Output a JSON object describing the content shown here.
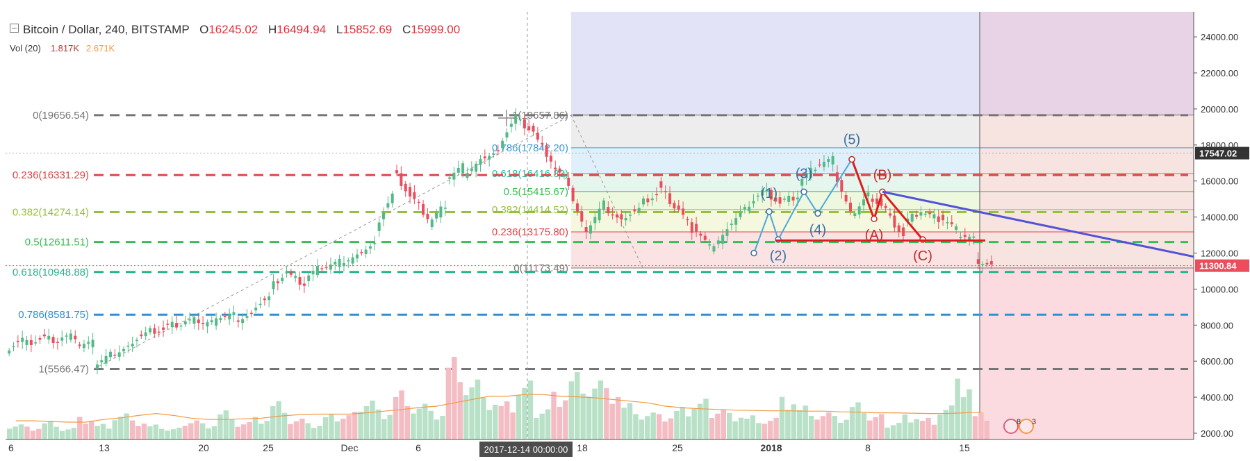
{
  "header": {
    "title": "Bitcoin / Dollar, 240, BITSTAMP",
    "o_label": "O",
    "o_value": "16245.02",
    "h_label": "H",
    "h_value": "16494.94",
    "l_label": "L",
    "l_value": "15852.69",
    "c_label": "C",
    "c_value": "15999.00",
    "vol_label": "Vol (20)",
    "vol_value": "1.817K",
    "vol_ma": "2.671K"
  },
  "colors": {
    "up": "#53b987",
    "down": "#eb4d5c",
    "bg_blue": "#e3e3f8",
    "bg_pink": "#fbdbe0",
    "bg_purple": "#e8d3e6"
  },
  "chart_data": {
    "type": "candlestick",
    "symbol": "Bitcoin / Dollar",
    "timeframe": "240",
    "exchange": "BITSTAMP",
    "ylim": [
      1000,
      24500
    ],
    "y_ticks": [
      "24000.00",
      "22000.00",
      "20000.00",
      "18000.00",
      "16000.00",
      "14000.00",
      "12000.00",
      "10000.00",
      "8000.00",
      "6000.00",
      "4000.00",
      "2000.00"
    ],
    "x_ticks": [
      "6",
      "13",
      "20",
      "25",
      "Dec",
      "6",
      "18",
      "25",
      "2018",
      "8",
      "15"
    ],
    "crosshair_label": "2017-12-14 00:00:00",
    "price_labels": [
      {
        "value": 17547.02,
        "text": "17547.02",
        "color": "#333333"
      },
      {
        "value": 11300.84,
        "text": "11300.84",
        "color": "#eb4d5c"
      }
    ],
    "price_path": [
      [
        6600,
        7300
      ],
      [
        6900,
        7250
      ],
      [
        7300,
        7150
      ],
      [
        7200,
        7400
      ],
      [
        6800,
        7000
      ],
      [
        5700,
        6400
      ],
      [
        6300,
        6800
      ],
      [
        7000,
        7600
      ],
      [
        7600,
        7800
      ],
      [
        7900,
        8100
      ],
      [
        8100,
        8300
      ],
      [
        8000,
        8200
      ],
      [
        8400,
        8600
      ],
      [
        8200,
        8600
      ],
      [
        9000,
        9600
      ],
      [
        10000,
        11000
      ],
      [
        10800,
        10300
      ],
      [
        10500,
        11300
      ],
      [
        11100,
        11500
      ],
      [
        11400,
        11800
      ],
      [
        12000,
        12500
      ],
      [
        13400,
        15300
      ],
      [
        16600,
        15200
      ],
      [
        15200,
        14000
      ],
      [
        13500,
        14700
      ],
      [
        16000,
        16800
      ],
      [
        16300,
        17100
      ],
      [
        17300,
        17600
      ],
      [
        18000,
        19650
      ],
      [
        19400,
        18800
      ],
      [
        18500,
        17200
      ],
      [
        16800,
        15900
      ],
      [
        15500,
        13000
      ],
      [
        13200,
        14800
      ],
      [
        14500,
        13800
      ],
      [
        14000,
        14500
      ],
      [
        14700,
        15300
      ],
      [
        15800,
        14600
      ],
      [
        14700,
        13300
      ],
      [
        13500,
        12300
      ],
      [
        12200,
        13200
      ],
      [
        13500,
        14500
      ],
      [
        14500,
        15500
      ],
      [
        15500,
        14800
      ],
      [
        14800,
        15200
      ],
      [
        15800,
        16800
      ],
      [
        16800,
        17200
      ],
      [
        16600,
        14200
      ],
      [
        14000,
        15300
      ],
      [
        15200,
        14500
      ],
      [
        14200,
        13000
      ],
      [
        13600,
        14400
      ],
      [
        14200,
        13900
      ],
      [
        14000,
        13300
      ],
      [
        13000,
        12800
      ],
      [
        11600,
        11300
      ]
    ],
    "volume_heights": [
      380,
      310,
      450,
      280,
      520,
      360,
      600,
      420,
      330,
      260,
      480,
      390,
      700,
      420,
      520,
      880,
      480,
      360,
      560,
      610,
      980,
      720,
      1180,
      860,
      660,
      1900,
      1380,
      920,
      840,
      1300,
      760,
      1150,
      1620,
      1420,
      1180,
      840,
      620,
      560,
      720,
      900,
      760,
      640,
      580,
      520,
      980,
      780,
      620,
      520,
      820,
      560,
      420,
      600,
      520,
      820,
      1400,
      620
    ],
    "volume_ma": [
      560,
      560,
      540,
      520,
      520,
      600,
      650,
      720,
      780,
      720,
      640,
      600,
      600,
      620,
      640,
      700,
      740,
      760,
      760,
      760,
      800,
      850,
      900,
      960,
      1000,
      1100,
      1200,
      1300,
      1300,
      1350,
      1350,
      1300,
      1280,
      1250,
      1200,
      1150,
      1100,
      1000,
      950,
      920,
      900,
      880,
      870,
      860,
      860,
      850,
      850,
      830,
      820,
      800,
      800,
      790,
      780,
      780,
      800,
      820
    ],
    "fib_left": {
      "levels": [
        {
          "ratio": "0",
          "price": 19656.54,
          "text": "0(19656.54)",
          "color": "#757575"
        },
        {
          "ratio": "0.236",
          "price": 16331.29,
          "text": "0.236(16331.29)",
          "color": "#e04545"
        },
        {
          "ratio": "0.382",
          "price": 14274.14,
          "text": "0.382(14274.14)",
          "color": "#95c03c"
        },
        {
          "ratio": "0.5",
          "price": 12611.51,
          "text": "0.5(12611.51)",
          "color": "#37bd52"
        },
        {
          "ratio": "0.618",
          "price": 10948.88,
          "text": "0.618(10948.88)",
          "color": "#26b38e"
        },
        {
          "ratio": "0.786",
          "price": 8581.75,
          "text": "0.786(8581.75)",
          "color": "#2f8fd0"
        },
        {
          "ratio": "1",
          "price": 5566.47,
          "text": "1(5566.47)",
          "color": "#757575"
        }
      ]
    },
    "fib_right": {
      "levels": [
        {
          "ratio": "1",
          "price": 19657.86,
          "text": "1(19657.86)",
          "color": "#757575"
        },
        {
          "ratio": "0.786",
          "price": 17842.2,
          "text": "0.786(17842.20)",
          "color": "#3a9bd5"
        },
        {
          "ratio": "0.618",
          "price": 16416.83,
          "text": "0.618(16416.83)",
          "color": "#2fbaa0"
        },
        {
          "ratio": "0.5",
          "price": 15415.67,
          "text": "0.5(15415.67)",
          "color": "#37bd52"
        },
        {
          "ratio": "0.382",
          "price": 14414.52,
          "text": "0.382(14414.52)",
          "color": "#95c03c"
        },
        {
          "ratio": "0.236",
          "price": 13175.8,
          "text": "0.236(13175.80)",
          "color": "#e04545"
        },
        {
          "ratio": "0",
          "price": 11173.49,
          "text": "0(11173.49)",
          "color": "#757575"
        }
      ]
    },
    "waves": [
      {
        "label": "(1)",
        "price": 14300,
        "color": "#3a6ea5"
      },
      {
        "label": "(2)",
        "price": 12750,
        "color": "#3a6ea5"
      },
      {
        "label": "(3)",
        "price": 15400,
        "color": "#3a6ea5"
      },
      {
        "label": "(4)",
        "price": 14200,
        "color": "#3a6ea5"
      },
      {
        "label": "(5)",
        "price": 17200,
        "color": "#3a6ea5"
      },
      {
        "label": "(A)",
        "price": 13900,
        "color": "#c62828"
      },
      {
        "label": "(B)",
        "price": 15400,
        "color": "#c62828"
      },
      {
        "label": "(C)",
        "price": 12750,
        "color": "#c62828"
      }
    ],
    "flags": [
      {
        "text": "8"
      },
      {
        "text": "3"
      }
    ]
  }
}
